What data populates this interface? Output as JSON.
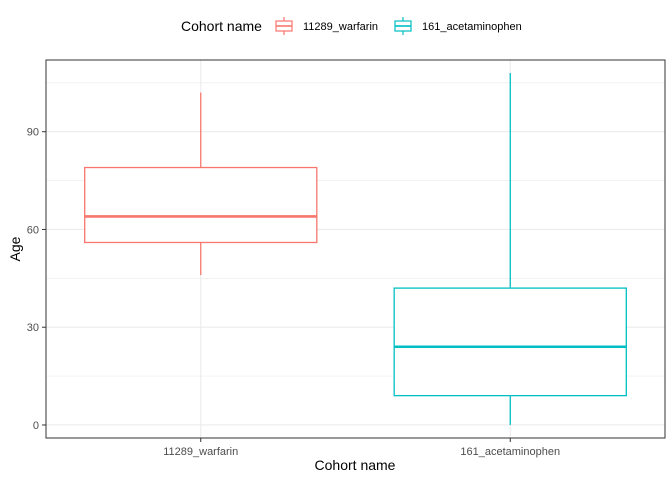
{
  "chart_data": {
    "type": "boxplot",
    "xlabel": "Cohort name",
    "ylabel": "Age",
    "legend": {
      "title": "Cohort name",
      "position": "top"
    },
    "grid": true,
    "ylim": [
      -4,
      112
    ],
    "yticks": [
      0,
      30,
      60,
      90
    ],
    "categories": [
      "11289_warfarin",
      "161_acetaminophen"
    ],
    "series": [
      {
        "name": "11289_warfarin",
        "color": "#F8766D",
        "min": 46,
        "q1": 56,
        "median": 64,
        "q3": 79,
        "max": 102
      },
      {
        "name": "161_acetaminophen",
        "color": "#00BFC4",
        "min": 0,
        "q1": 9,
        "median": 24,
        "q3": 42,
        "max": 108
      }
    ]
  }
}
